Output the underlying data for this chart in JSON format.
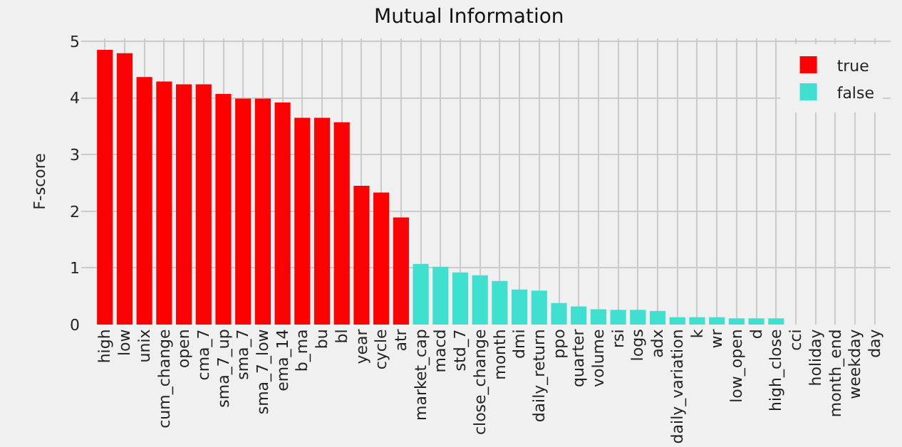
{
  "chart_data": {
    "type": "bar",
    "title": "Mutual Information",
    "ylabel": "F-score",
    "categories": [
      "high",
      "low",
      "unix",
      "cum_change",
      "open",
      "cma_7",
      "sma_7_up",
      "sma_7",
      "sma_7_low",
      "ema_14",
      "b_ma",
      "bu",
      "bl",
      "year",
      "cycle",
      "atr",
      "market_cap",
      "macd",
      "std_7",
      "close_change",
      "month",
      "dmi",
      "daily_return",
      "ppo",
      "quarter",
      "volume",
      "rsi",
      "logs",
      "adx",
      "daily_variation",
      "k",
      "wr",
      "low_open",
      "d",
      "high_close",
      "cci",
      "holiday",
      "month_end",
      "weekday",
      "day"
    ],
    "series": [
      {
        "name": "true",
        "color": "#ff0000",
        "values": [
          4.85,
          4.79,
          4.37,
          4.29,
          4.24,
          4.24,
          4.07,
          3.99,
          3.99,
          3.92,
          3.65,
          3.65,
          3.57,
          2.45,
          2.33,
          1.89,
          null,
          null,
          null,
          null,
          null,
          null,
          null,
          null,
          null,
          null,
          null,
          null,
          null,
          null,
          null,
          null,
          null,
          null,
          null,
          null,
          null,
          null,
          null,
          null
        ]
      },
      {
        "name": "false",
        "color": "#40e0d0",
        "values": [
          null,
          null,
          null,
          null,
          null,
          null,
          null,
          null,
          null,
          null,
          null,
          null,
          null,
          null,
          null,
          null,
          1.07,
          1.02,
          0.92,
          0.87,
          0.77,
          0.62,
          0.6,
          0.38,
          0.32,
          0.27,
          0.26,
          0.26,
          0.24,
          0.13,
          0.13,
          0.13,
          0.11,
          0.11,
          0.11,
          0,
          0,
          0,
          0,
          0
        ]
      }
    ],
    "ylim": [
      0,
      5.05
    ],
    "yticks": [
      0,
      1,
      2,
      3,
      4,
      5
    ],
    "grid": true,
    "legend": "top right"
  }
}
